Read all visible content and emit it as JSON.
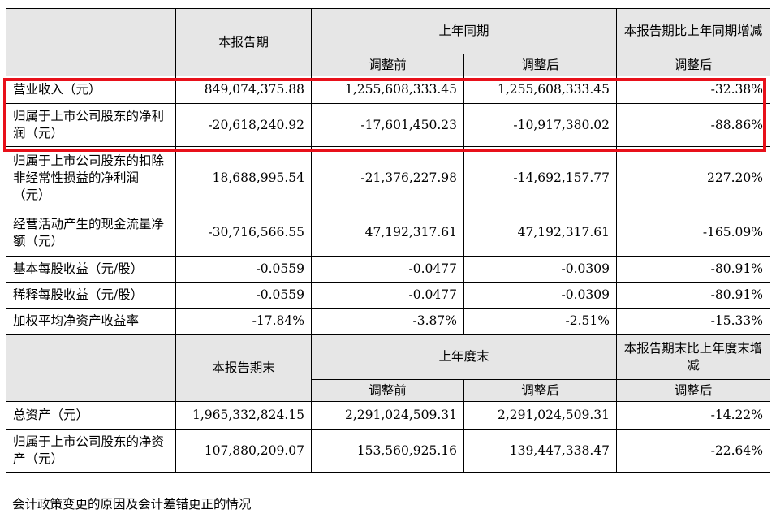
{
  "header1": {
    "current_period": "本报告期",
    "prior_period": "上年同期",
    "change": "本报告期比上年同期增减",
    "before_adjust": "调整前",
    "after_adjust": "调整后",
    "change_after": "调整后"
  },
  "rows1": [
    {
      "label": "营业收入（元）",
      "current": "849,074,375.88",
      "before": "1,255,608,333.45",
      "after": "1,255,608,333.45",
      "change": "-32.38%"
    },
    {
      "label": "归属于上市公司股东的净利润（元）",
      "current": "-20,618,240.92",
      "before": "-17,601,450.23",
      "after": "-10,917,380.02",
      "change": "-88.86%"
    },
    {
      "label": "归属于上市公司股东的扣除非经常性损益的净利润（元）",
      "current": "18,688,995.54",
      "before": "-21,376,227.98",
      "after": "-14,692,157.77",
      "change": "227.20%"
    },
    {
      "label": "经营活动产生的现金流量净额（元）",
      "current": "-30,716,566.55",
      "before": "47,192,317.61",
      "after": "47,192,317.61",
      "change": "-165.09%"
    },
    {
      "label": "基本每股收益（元/股）",
      "current": "-0.0559",
      "before": "-0.0477",
      "after": "-0.0309",
      "change": "-80.91%"
    },
    {
      "label": "稀释每股收益（元/股）",
      "current": "-0.0559",
      "before": "-0.0477",
      "after": "-0.0309",
      "change": "-80.91%"
    },
    {
      "label": "加权平均净资产收益率",
      "current": "-17.84%",
      "before": "-3.87%",
      "after": "-2.51%",
      "change": "-15.33%"
    }
  ],
  "header2": {
    "current_period_end": "本报告期末",
    "prior_year_end": "上年度末",
    "change": "本报告期末比上年度末增减",
    "before_adjust": "调整前",
    "after_adjust": "调整后",
    "change_after": "调整后"
  },
  "rows2": [
    {
      "label": "总资产（元）",
      "current": "1,965,332,824.15",
      "before": "2,291,024,509.31",
      "after": "2,291,024,509.31",
      "change": "-14.22%"
    },
    {
      "label": "归属于上市公司股东的净资产（元）",
      "current": "107,880,209.07",
      "before": "153,560,925.16",
      "after": "139,447,338.47",
      "change": "-22.64%"
    }
  ],
  "footer_text": "会计政策变更的原因及会计差错更正的情况",
  "colors": {
    "highlight": "#e8101a",
    "header_bg": "#e6e6e6"
  }
}
